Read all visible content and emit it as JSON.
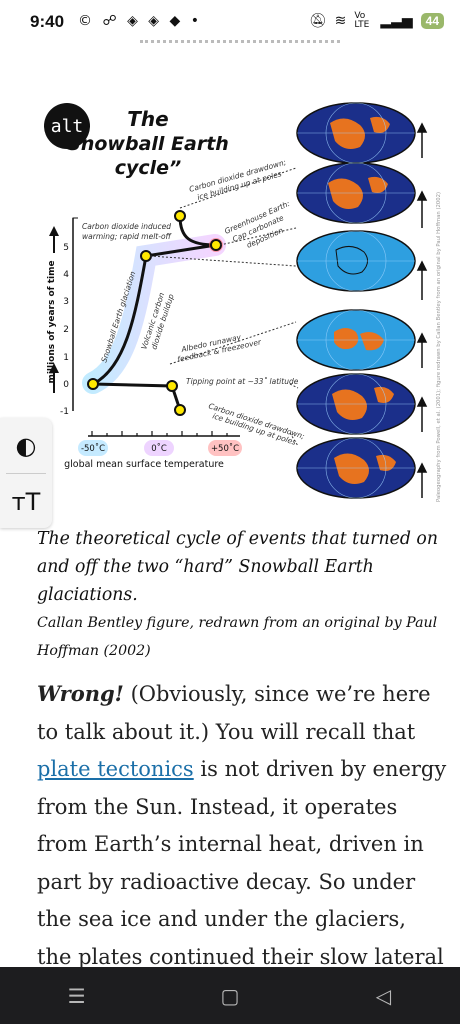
{
  "status": {
    "time": "9:40",
    "left_icons": "© ☍ ◈ ◈ ◆ •",
    "right_icons": [
      "mute-icon",
      "wifi-icon",
      "volte-icon",
      "signal-icon"
    ],
    "volte_label": "Vo LTE",
    "battery": "44"
  },
  "figure": {
    "alt_label": "alt",
    "title_line1": "The",
    "title_line2": "Snowball Earth",
    "title_line3": "cycle”",
    "y_axis_label": "millions of years of time",
    "y_ticks": [
      "5",
      "4",
      "3",
      "2",
      "1",
      "0",
      "-1"
    ],
    "x_ticks": [
      "-50˚C",
      "0˚C",
      "+50˚C"
    ],
    "x_axis_label": "global mean surface temperature",
    "annotations": {
      "co2_induced": "Carbon dioxide induced",
      "warming": "warming; rapid melt-off",
      "greenhouse1": "Greenhouse Earth:",
      "greenhouse2": "Cap carbonate",
      "greenhouse3": "deposition",
      "drawdown_top1": "Carbon dioxide drawdown;",
      "drawdown_top2": "ice building up at poles",
      "snowball": "Snowball Earth glaciation",
      "volcanic1": "Volcanic carbon",
      "volcanic2": "dioxide buildup",
      "albedo1": "Albedo runaway",
      "albedo2": "feedback & freezeover",
      "tipping": "Tipping point at ~33˚ latitude",
      "drawdown_bottom1": "Carbon dioxide drawdown;",
      "drawdown_bottom2": "ice building up at poles"
    },
    "side_credit": "Paleogeography from Powell, et al. (2001); figure redrawn by Callan Bentley from an original by Paul Hoffman (2002)",
    "colors": {
      "ocean_blue": "#1b2f8a",
      "ice_blue": "#2e9fe0",
      "land_orange": "#e7731f"
    }
  },
  "tools": {
    "contrast_icon": "◐",
    "text_size_icon": "ᴛT"
  },
  "caption": {
    "main": "The theoretical cycle of events that turned on and off the two “hard” Snowball Earth glaciations.",
    "credit": "Callan Bentley figure, redrawn from an original by Paul Hoffman (2002)"
  },
  "body": {
    "wrong": "Wrong!",
    "seg1": " (Obviously, since we’re here to talk about it.) You will recall that ",
    "link": "plate tectonics",
    "seg2": " is not driven by energy from the Sun. Instead, it operates from Earth’s internal heat, driven in part by radioactive decay. So under the sea ice and under the glaciers, the plates continued their slow lateral"
  },
  "nav": {
    "menu": "☰",
    "home": "▢",
    "back": "◁"
  }
}
